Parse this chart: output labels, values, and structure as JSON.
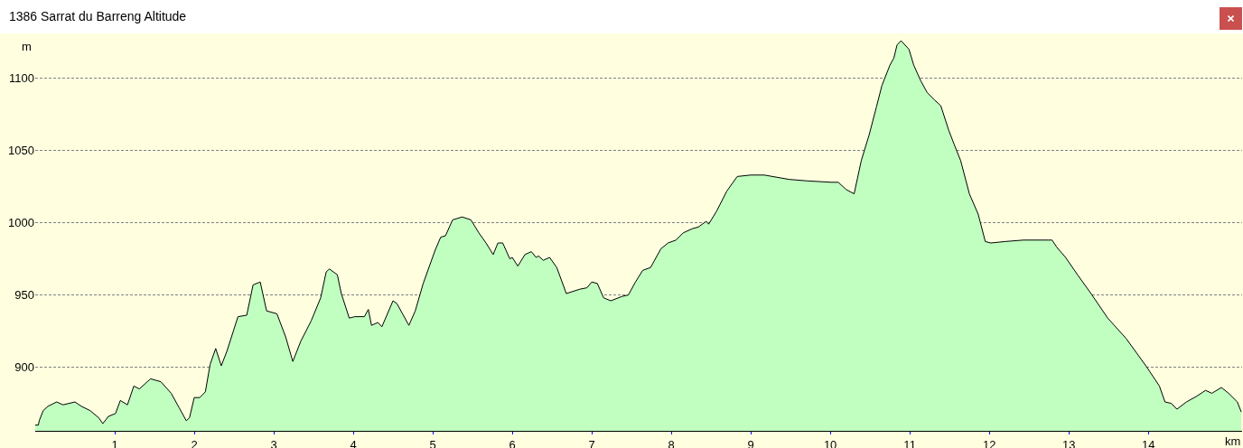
{
  "chart_data": {
    "type": "area",
    "title": "1386 Sarrat du Barreng Altitude",
    "xlabel": "km",
    "ylabel": "m",
    "x": [
      0.0,
      0.04,
      0.05,
      0.1,
      0.16,
      0.27,
      0.35,
      0.5,
      0.58,
      0.69,
      0.8,
      0.85,
      0.92,
      1.01,
      1.07,
      1.16,
      1.24,
      1.31,
      1.45,
      1.58,
      1.71,
      1.81,
      1.9,
      1.94,
      2.0,
      2.07,
      2.14,
      2.2,
      2.27,
      2.34,
      2.41,
      2.55,
      2.66,
      2.74,
      2.83,
      2.91,
      3.04,
      3.15,
      3.24,
      3.34,
      3.47,
      3.59,
      3.66,
      3.7,
      3.8,
      3.85,
      3.95,
      4.02,
      4.14,
      4.19,
      4.23,
      4.31,
      4.36,
      4.5,
      4.55,
      4.7,
      4.78,
      4.88,
      5.03,
      5.1,
      5.16,
      5.25,
      5.37,
      5.48,
      5.58,
      5.67,
      5.76,
      5.82,
      5.88,
      5.97,
      6.0,
      6.07,
      6.16,
      6.24,
      6.3,
      6.33,
      6.39,
      6.47,
      6.56,
      6.68,
      6.85,
      6.94,
      7.0,
      7.07,
      7.15,
      7.24,
      7.38,
      7.46,
      7.55,
      7.64,
      7.74,
      7.87,
      7.96,
      8.06,
      8.15,
      8.27,
      8.34,
      8.44,
      8.47,
      8.57,
      8.7,
      8.83,
      9.0,
      9.17,
      9.48,
      9.7,
      10.01,
      10.1,
      10.2,
      10.3,
      10.39,
      10.49,
      10.58,
      10.65,
      10.75,
      10.8,
      10.84,
      10.89,
      10.99,
      11.05,
      11.14,
      11.22,
      11.31,
      11.39,
      11.49,
      11.56,
      11.64,
      11.75,
      11.86,
      11.95,
      12.02,
      12.2,
      12.43,
      12.74,
      12.79,
      12.85,
      12.96,
      13.11,
      13.28,
      13.49,
      13.72,
      13.97,
      14.14,
      14.21,
      14.29,
      14.36,
      14.48,
      14.61,
      14.72,
      14.8,
      14.92,
      15.01,
      15.12,
      15.17
    ],
    "values": [
      860,
      860,
      863,
      870,
      873,
      876,
      874,
      876,
      873,
      870,
      865,
      861,
      866,
      868,
      877,
      874,
      887,
      885,
      892,
      890,
      882,
      872,
      863,
      865,
      879,
      879,
      883,
      902,
      913,
      901,
      911,
      935,
      936,
      957,
      959,
      939,
      937,
      921,
      904,
      918,
      932,
      948,
      966,
      968,
      964,
      951,
      934,
      935,
      935,
      940,
      929,
      931,
      928,
      946,
      944,
      929,
      939,
      958,
      981,
      990,
      991,
      1002,
      1004,
      1002,
      993,
      986,
      978,
      986,
      986,
      975,
      976,
      970,
      978,
      980,
      976,
      977,
      974,
      976,
      969,
      951,
      954,
      955,
      959,
      958,
      948,
      946,
      949,
      950,
      959,
      967,
      969,
      982,
      986,
      988,
      993,
      996,
      997,
      1001,
      999,
      1008,
      1022,
      1032,
      1033,
      1033,
      1030,
      1029,
      1028,
      1028,
      1023,
      1020,
      1043,
      1061,
      1080,
      1095,
      1109,
      1114,
      1123,
      1126,
      1120,
      1109,
      1098,
      1090,
      1085,
      1081,
      1064,
      1054,
      1043,
      1020,
      1006,
      987,
      986,
      987,
      988,
      988,
      988,
      983,
      976,
      964,
      951,
      934,
      920,
      901,
      887,
      876,
      875,
      871,
      876,
      880,
      884,
      882,
      886,
      882,
      876,
      869
    ],
    "color": "#c0ffc0",
    "line_style": "solid",
    "xlim": [
      0,
      15.18
    ],
    "ylim": [
      856,
      1131
    ],
    "xticks": [
      1,
      2,
      3,
      4,
      5,
      6,
      7,
      8,
      9,
      10,
      11,
      12,
      13,
      14
    ],
    "yticks": [
      900,
      950,
      1000,
      1050,
      1100
    ],
    "grid": "y"
  }
}
